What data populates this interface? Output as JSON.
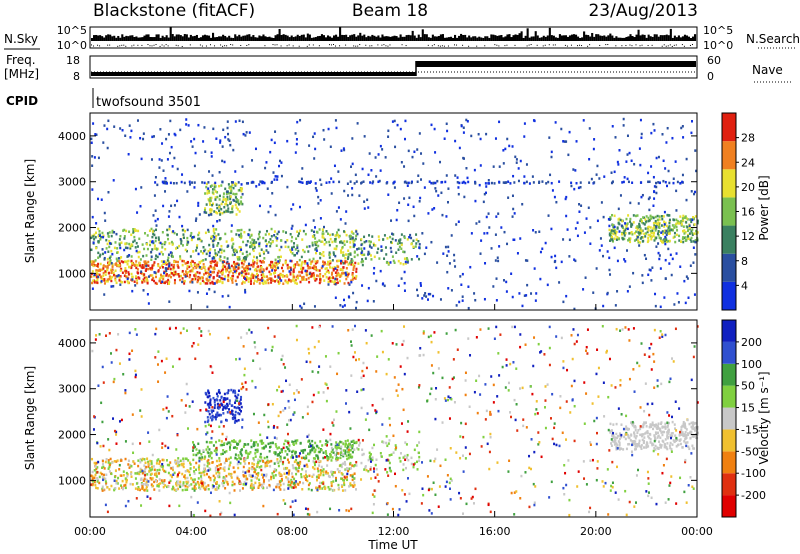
{
  "header": {
    "station": "Blackstone (fitACF)",
    "beam": "Beam 18",
    "date": "23/Aug/2013"
  },
  "aux_panels": {
    "nsky_label": "N.Sky",
    "nsky_ticks": [
      "10^5",
      "10^0"
    ],
    "nsearch_label": "N.Search",
    "nsearch_ticks": [
      "10^5",
      "10^0"
    ],
    "freq_label_line1": "Freq.",
    "freq_label_line2": "[MHz]",
    "freq_ticks": [
      "18",
      "8"
    ],
    "nave_label": "Nave",
    "nave_ticks": [
      "60",
      "0"
    ],
    "cpid_label": "CPID",
    "cpid_name": "twofsound 3501"
  },
  "chart_data": [
    {
      "type": "heatmap",
      "title": "",
      "ylabel": "Slant Range [km]",
      "xlabel": "",
      "yticks": [
        "1000",
        "2000",
        "3000",
        "4000"
      ],
      "ylim": [
        200,
        4500
      ],
      "colorbar": {
        "label": "Power [dB]",
        "ticks": [
          "4",
          "8",
          "12",
          "16",
          "20",
          "24",
          "28"
        ],
        "colors": [
          "#1030e0",
          "#2a4fa0",
          "#3a8060",
          "#7ac050",
          "#e8e030",
          "#f08020",
          "#e02010"
        ]
      }
    },
    {
      "type": "heatmap",
      "title": "",
      "ylabel": "Slant Range [km]",
      "xlabel": "Time UT",
      "xticks": [
        "00:00",
        "04:00",
        "08:00",
        "12:00",
        "16:00",
        "20:00",
        "00:00"
      ],
      "yticks": [
        "1000",
        "2000",
        "3000",
        "4000"
      ],
      "ylim": [
        200,
        4500
      ],
      "colorbar": {
        "label": "Velocity [m s⁻¹]",
        "ticks": [
          "200",
          "100",
          "50",
          "15",
          "-15",
          "-50",
          "-100",
          "-200"
        ],
        "colors": [
          "#1020c0",
          "#3050d0",
          "#40a040",
          "#80d040",
          "#c8c8c8",
          "#f0c030",
          "#f08010",
          "#e03010",
          "#e00000"
        ]
      }
    }
  ]
}
